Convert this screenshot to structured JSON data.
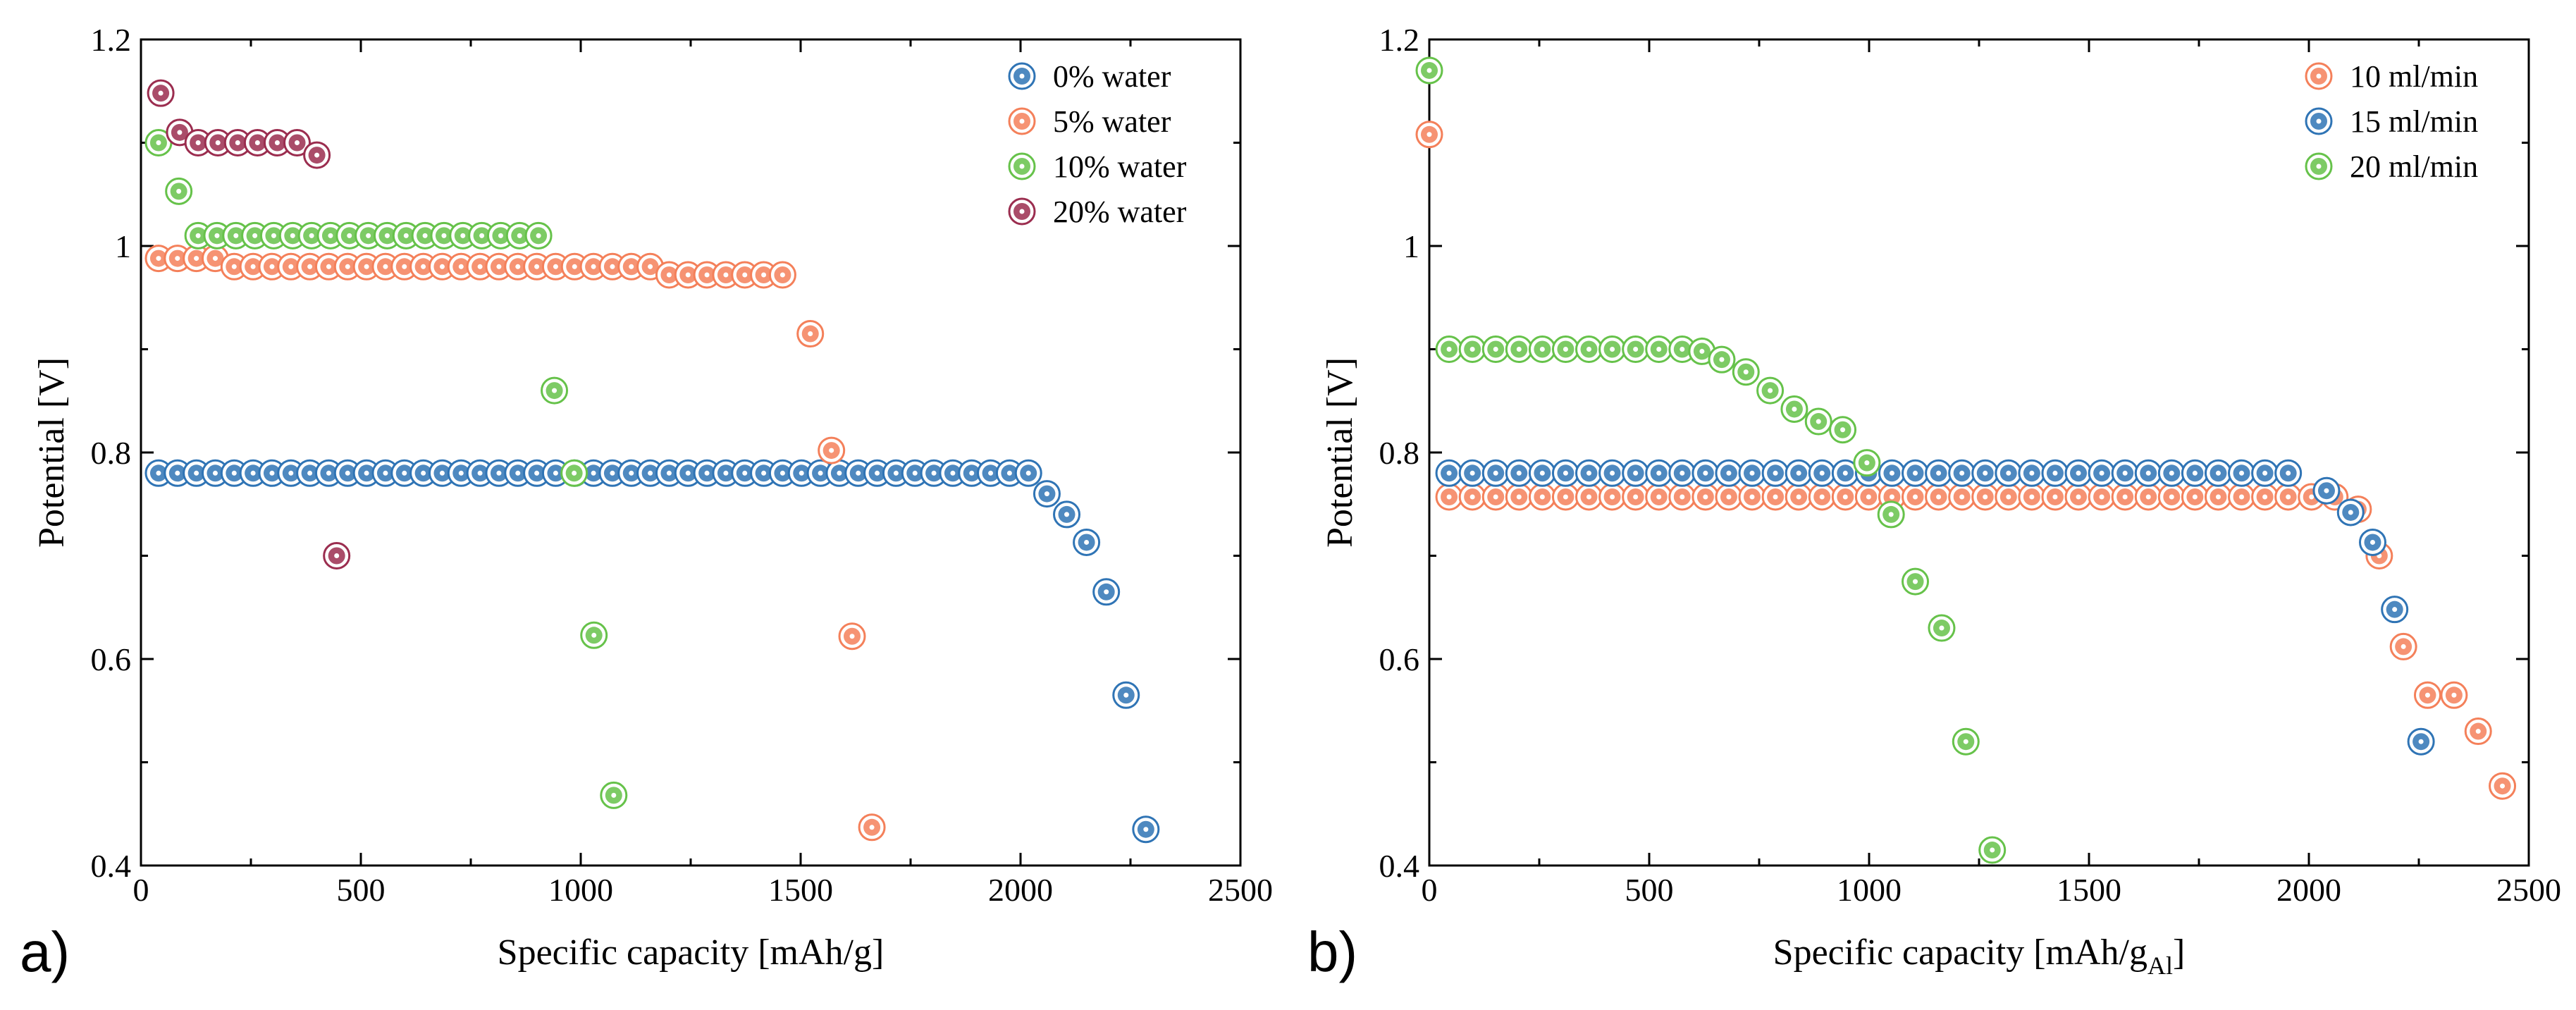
{
  "colors": {
    "blue": "#2f74b5",
    "orange": "#f4805a",
    "green": "#66c24a",
    "maroon": "#9b2d4f"
  },
  "chart_data": [
    {
      "type": "scatter",
      "panel_label": "a)",
      "title": "",
      "xlabel": "Specific capacity [mAh/g]",
      "xlabel_sub": "",
      "xlabel_end": "",
      "ylabel": "Potential [V]",
      "xlim": [
        0,
        2500
      ],
      "ylim": [
        0.4,
        1.2
      ],
      "xticks": [
        0,
        500,
        1000,
        1500,
        2000,
        2500
      ],
      "yticks": [
        0.4,
        0.6,
        0.8,
        1,
        1.2
      ],
      "ytick_labels": [
        "0.4",
        "0.6",
        "0.8",
        "1",
        "1.2"
      ],
      "legend_position": "top-right",
      "series": [
        {
          "name": "0% water",
          "color": "blue",
          "points": [
            [
              40,
              0.78
            ],
            [
              83,
              0.78
            ],
            [
              126,
              0.78
            ],
            [
              169,
              0.78
            ],
            [
              212,
              0.78
            ],
            [
              255,
              0.78
            ],
            [
              298,
              0.78
            ],
            [
              341,
              0.78
            ],
            [
              384,
              0.78
            ],
            [
              427,
              0.78
            ],
            [
              470,
              0.78
            ],
            [
              513,
              0.78
            ],
            [
              556,
              0.78
            ],
            [
              599,
              0.78
            ],
            [
              642,
              0.78
            ],
            [
              685,
              0.78
            ],
            [
              728,
              0.78
            ],
            [
              771,
              0.78
            ],
            [
              814,
              0.78
            ],
            [
              857,
              0.78
            ],
            [
              900,
              0.78
            ],
            [
              943,
              0.78
            ],
            [
              986,
              0.78
            ],
            [
              1029,
              0.78
            ],
            [
              1072,
              0.78
            ],
            [
              1115,
              0.78
            ],
            [
              1158,
              0.78
            ],
            [
              1201,
              0.78
            ],
            [
              1244,
              0.78
            ],
            [
              1287,
              0.78
            ],
            [
              1330,
              0.78
            ],
            [
              1373,
              0.78
            ],
            [
              1416,
              0.78
            ],
            [
              1459,
              0.78
            ],
            [
              1502,
              0.78
            ],
            [
              1545,
              0.78
            ],
            [
              1588,
              0.78
            ],
            [
              1631,
              0.78
            ],
            [
              1674,
              0.78
            ],
            [
              1717,
              0.78
            ],
            [
              1760,
              0.78
            ],
            [
              1803,
              0.78
            ],
            [
              1846,
              0.78
            ],
            [
              1889,
              0.78
            ],
            [
              1932,
              0.78
            ],
            [
              1975,
              0.78
            ],
            [
              2018,
              0.78
            ],
            [
              2060,
              0.76
            ],
            [
              2105,
              0.74
            ],
            [
              2150,
              0.713
            ],
            [
              2195,
              0.665
            ],
            [
              2240,
              0.565
            ],
            [
              2285,
              0.435
            ]
          ]
        },
        {
          "name": "5% water",
          "color": "orange",
          "points": [
            [
              40,
              0.988
            ],
            [
              83,
              0.988
            ],
            [
              126,
              0.988
            ],
            [
              169,
              0.988
            ],
            [
              212,
              0.98
            ],
            [
              255,
              0.98
            ],
            [
              298,
              0.98
            ],
            [
              341,
              0.98
            ],
            [
              384,
              0.98
            ],
            [
              427,
              0.98
            ],
            [
              470,
              0.98
            ],
            [
              513,
              0.98
            ],
            [
              556,
              0.98
            ],
            [
              599,
              0.98
            ],
            [
              642,
              0.98
            ],
            [
              685,
              0.98
            ],
            [
              728,
              0.98
            ],
            [
              771,
              0.98
            ],
            [
              814,
              0.98
            ],
            [
              857,
              0.98
            ],
            [
              900,
              0.98
            ],
            [
              943,
              0.98
            ],
            [
              986,
              0.98
            ],
            [
              1029,
              0.98
            ],
            [
              1072,
              0.98
            ],
            [
              1115,
              0.98
            ],
            [
              1158,
              0.98
            ],
            [
              1201,
              0.972
            ],
            [
              1244,
              0.972
            ],
            [
              1287,
              0.972
            ],
            [
              1330,
              0.972
            ],
            [
              1373,
              0.972
            ],
            [
              1416,
              0.972
            ],
            [
              1459,
              0.972
            ],
            [
              1522,
              0.915
            ],
            [
              1570,
              0.802
            ],
            [
              1617,
              0.622
            ],
            [
              1662,
              0.437
            ]
          ]
        },
        {
          "name": "10% water",
          "color": "green",
          "points": [
            [
              40,
              1.1
            ],
            [
              86,
              1.053
            ],
            [
              130,
              1.01
            ],
            [
              173,
              1.01
            ],
            [
              216,
              1.01
            ],
            [
              259,
              1.01
            ],
            [
              302,
              1.01
            ],
            [
              345,
              1.01
            ],
            [
              388,
              1.01
            ],
            [
              431,
              1.01
            ],
            [
              474,
              1.01
            ],
            [
              517,
              1.01
            ],
            [
              560,
              1.01
            ],
            [
              603,
              1.01
            ],
            [
              646,
              1.01
            ],
            [
              689,
              1.01
            ],
            [
              732,
              1.01
            ],
            [
              775,
              1.01
            ],
            [
              818,
              1.01
            ],
            [
              861,
              1.01
            ],
            [
              904,
              1.01
            ],
            [
              940,
              0.86
            ],
            [
              985,
              0.78
            ],
            [
              1030,
              0.623
            ],
            [
              1075,
              0.468
            ]
          ]
        },
        {
          "name": "20% water",
          "color": "maroon",
          "points": [
            [
              45,
              1.148
            ],
            [
              88,
              1.11
            ],
            [
              130,
              1.1
            ],
            [
              175,
              1.1
            ],
            [
              220,
              1.1
            ],
            [
              265,
              1.1
            ],
            [
              310,
              1.1
            ],
            [
              355,
              1.1
            ],
            [
              400,
              1.088
            ],
            [
              445,
              0.7
            ]
          ]
        }
      ]
    },
    {
      "type": "scatter",
      "panel_label": "b)",
      "title": "",
      "xlabel": "Specific capacity [mAh/g",
      "xlabel_sub": "Al",
      "xlabel_end": "]",
      "ylabel": "Potential [V]",
      "xlim": [
        0,
        2500
      ],
      "ylim": [
        0.4,
        1.2
      ],
      "xticks": [
        0,
        500,
        1000,
        1500,
        2000,
        2500
      ],
      "yticks": [
        0.4,
        0.6,
        0.8,
        1,
        1.2
      ],
      "ytick_labels": [
        "0.4",
        "0.6",
        "0.8",
        "1",
        "1.2"
      ],
      "legend_position": "top-right",
      "series": [
        {
          "name": "10 ml/min",
          "color": "orange",
          "points": [
            [
              0,
              1.108
            ],
            [
              45,
              0.757
            ],
            [
              98,
              0.757
            ],
            [
              151,
              0.757
            ],
            [
              204,
              0.757
            ],
            [
              257,
              0.757
            ],
            [
              310,
              0.757
            ],
            [
              363,
              0.757
            ],
            [
              416,
              0.757
            ],
            [
              469,
              0.757
            ],
            [
              522,
              0.757
            ],
            [
              575,
              0.757
            ],
            [
              628,
              0.757
            ],
            [
              681,
              0.757
            ],
            [
              734,
              0.757
            ],
            [
              787,
              0.757
            ],
            [
              840,
              0.757
            ],
            [
              893,
              0.757
            ],
            [
              946,
              0.757
            ],
            [
              999,
              0.757
            ],
            [
              1052,
              0.757
            ],
            [
              1105,
              0.757
            ],
            [
              1158,
              0.757
            ],
            [
              1211,
              0.757
            ],
            [
              1264,
              0.757
            ],
            [
              1317,
              0.757
            ],
            [
              1370,
              0.757
            ],
            [
              1423,
              0.757
            ],
            [
              1476,
              0.757
            ],
            [
              1529,
              0.757
            ],
            [
              1582,
              0.757
            ],
            [
              1635,
              0.757
            ],
            [
              1688,
              0.757
            ],
            [
              1741,
              0.757
            ],
            [
              1794,
              0.757
            ],
            [
              1847,
              0.757
            ],
            [
              1900,
              0.757
            ],
            [
              1953,
              0.757
            ],
            [
              2006,
              0.757
            ],
            [
              2059,
              0.757
            ],
            [
              2112,
              0.745
            ],
            [
              2160,
              0.7
            ],
            [
              2215,
              0.612
            ],
            [
              2270,
              0.565
            ],
            [
              2330,
              0.565
            ],
            [
              2385,
              0.53
            ],
            [
              2440,
              0.477
            ]
          ]
        },
        {
          "name": "15 ml/min",
          "color": "blue",
          "points": [
            [
              45,
              0.78
            ],
            [
              98,
              0.78
            ],
            [
              151,
              0.78
            ],
            [
              204,
              0.78
            ],
            [
              257,
              0.78
            ],
            [
              310,
              0.78
            ],
            [
              363,
              0.78
            ],
            [
              416,
              0.78
            ],
            [
              469,
              0.78
            ],
            [
              522,
              0.78
            ],
            [
              575,
              0.78
            ],
            [
              628,
              0.78
            ],
            [
              681,
              0.78
            ],
            [
              734,
              0.78
            ],
            [
              787,
              0.78
            ],
            [
              840,
              0.78
            ],
            [
              893,
              0.78
            ],
            [
              946,
              0.78
            ],
            [
              999,
              0.78
            ],
            [
              1052,
              0.78
            ],
            [
              1105,
              0.78
            ],
            [
              1158,
              0.78
            ],
            [
              1211,
              0.78
            ],
            [
              1264,
              0.78
            ],
            [
              1317,
              0.78
            ],
            [
              1370,
              0.78
            ],
            [
              1423,
              0.78
            ],
            [
              1476,
              0.78
            ],
            [
              1529,
              0.78
            ],
            [
              1582,
              0.78
            ],
            [
              1635,
              0.78
            ],
            [
              1688,
              0.78
            ],
            [
              1741,
              0.78
            ],
            [
              1794,
              0.78
            ],
            [
              1847,
              0.78
            ],
            [
              1900,
              0.78
            ],
            [
              1953,
              0.78
            ],
            [
              2040,
              0.763
            ],
            [
              2095,
              0.742
            ],
            [
              2145,
              0.713
            ],
            [
              2195,
              0.648
            ],
            [
              2255,
              0.52
            ]
          ]
        },
        {
          "name": "20 ml/min",
          "color": "green",
          "points": [
            [
              0,
              1.17
            ],
            [
              45,
              0.9
            ],
            [
              98,
              0.9
            ],
            [
              151,
              0.9
            ],
            [
              204,
              0.9
            ],
            [
              257,
              0.9
            ],
            [
              310,
              0.9
            ],
            [
              363,
              0.9
            ],
            [
              416,
              0.9
            ],
            [
              469,
              0.9
            ],
            [
              522,
              0.9
            ],
            [
              575,
              0.9
            ],
            [
              620,
              0.898
            ],
            [
              665,
              0.89
            ],
            [
              720,
              0.878
            ],
            [
              775,
              0.86
            ],
            [
              830,
              0.842
            ],
            [
              885,
              0.83
            ],
            [
              940,
              0.822
            ],
            [
              995,
              0.79
            ],
            [
              1050,
              0.74
            ],
            [
              1105,
              0.675
            ],
            [
              1165,
              0.63
            ],
            [
              1220,
              0.52
            ],
            [
              1280,
              0.415
            ]
          ]
        }
      ]
    }
  ]
}
